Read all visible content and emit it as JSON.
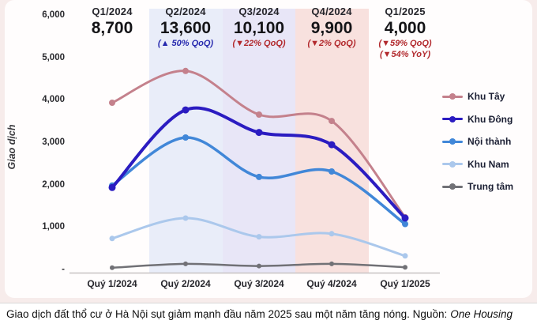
{
  "header": {
    "columns": [
      {
        "quarter": "Q1/2024",
        "total": "8,700",
        "notes": []
      },
      {
        "quarter": "Q2/2024",
        "total": "13,600",
        "notes": [
          {
            "text": "(▲ 50% QoQ)",
            "dir": "up"
          }
        ]
      },
      {
        "quarter": "Q3/2024",
        "total": "10,100",
        "notes": [
          {
            "text": "(▼22% QoQ)",
            "dir": "down"
          }
        ]
      },
      {
        "quarter": "Q4/2024",
        "total": "9,900",
        "notes": [
          {
            "text": "(▼2% QoQ)",
            "dir": "down"
          }
        ]
      },
      {
        "quarter": "Q1/2025",
        "total": "4,000",
        "notes": [
          {
            "text": "(▼59% QoQ)",
            "dir": "down"
          },
          {
            "text": "(▼54% YoY)",
            "dir": "down"
          }
        ]
      }
    ]
  },
  "chart_data": {
    "type": "line",
    "title": "",
    "xlabel": "",
    "ylabel": "Giao dịch",
    "ylim": [
      0,
      6000
    ],
    "grid": false,
    "legend_position": "right",
    "categories": [
      "Quý 1/2024",
      "Quý 2/2024",
      "Quý 3/2024",
      "Quý 4/2024",
      "Quý 1/2025"
    ],
    "y_ticks": [
      {
        "value": 6000,
        "label": "6,000"
      },
      {
        "value": 5000,
        "label": "5,000"
      },
      {
        "value": 4000,
        "label": "4,000"
      },
      {
        "value": 3000,
        "label": "3,000"
      },
      {
        "value": 2000,
        "label": "2,000"
      },
      {
        "value": 1000,
        "label": "1,000"
      },
      {
        "value": 0,
        "label": "-"
      }
    ],
    "series": [
      {
        "name": "Khu Tây",
        "color": "#c4818c",
        "values": [
          3950,
          4700,
          3670,
          3520,
          1250
        ]
      },
      {
        "name": "Khu Đông",
        "color": "#2b1cc1",
        "values": [
          1950,
          3780,
          3250,
          2960,
          1230
        ]
      },
      {
        "name": "Nội thành",
        "color": "#4187d8",
        "values": [
          2000,
          3130,
          2200,
          2330,
          1090
        ]
      },
      {
        "name": "Khu Nam",
        "color": "#abc8ec",
        "values": [
          750,
          1230,
          790,
          860,
          340
        ]
      },
      {
        "name": "Trung tâm",
        "color": "#717176",
        "values": [
          60,
          150,
          100,
          150,
          70
        ]
      }
    ],
    "highlight_bands": [
      {
        "category": "Quý 2/2024",
        "color": "#e9edf9"
      },
      {
        "category": "Quý 3/2024",
        "color": "#e8e6f7"
      },
      {
        "category": "Quý 4/2024",
        "color": "#f8e1de"
      }
    ]
  },
  "colors": {
    "note_up": "#2629ae",
    "note_down": "#b2292d",
    "axis_line": "#c8c3c3",
    "panel_background": "#fffdfd",
    "page_background": "#f7eceb"
  },
  "caption": {
    "text": "Giao dịch đất thổ cư ở Hà Nội sụt giảm mạnh đầu năm 2025 sau một năm tăng nóng. Nguồn:",
    "source": "One Housing"
  }
}
